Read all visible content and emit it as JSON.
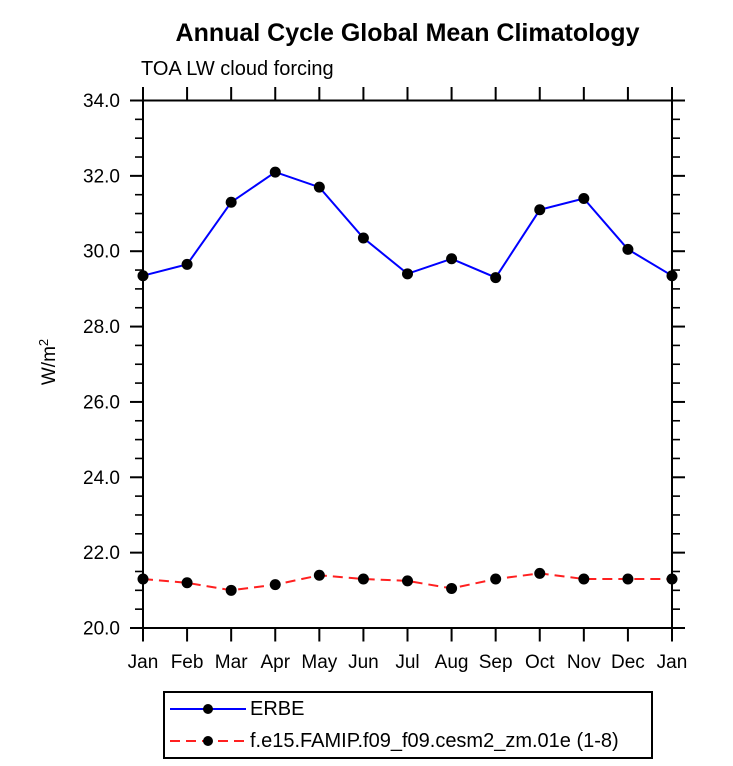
{
  "header": {
    "title": "Annual Cycle Global Mean Climatology",
    "subtitle": "TOA LW cloud forcing"
  },
  "colors": {
    "axis": "#000000",
    "erbe_line": "#0000ff",
    "model_line": "#ff2020",
    "marker": "#000000",
    "background": "#ffffff"
  },
  "chart_data": {
    "type": "line",
    "title": "Annual Cycle Global Mean Climatology",
    "subtitle": "TOA LW cloud forcing",
    "xlabel": "",
    "ylabel": "W/m²",
    "ylim": [
      20.0,
      34.0
    ],
    "y_major_step": 2.0,
    "y_minor_step": 0.5,
    "y_tick_labels": [
      "20.0",
      "22.0",
      "24.0",
      "26.0",
      "28.0",
      "30.0",
      "32.0",
      "34.0"
    ],
    "x_categories": [
      "Jan",
      "Feb",
      "Mar",
      "Apr",
      "May",
      "Jun",
      "Jul",
      "Aug",
      "Sep",
      "Oct",
      "Nov",
      "Dec",
      "Jan"
    ],
    "grid": false,
    "legend_position": "bottom-left-box",
    "series": [
      {
        "name": "ERBE",
        "color": "#0000ff",
        "line_style": "solid",
        "line_width": 2,
        "marker": "filled-circle",
        "marker_color": "#000000",
        "values": [
          29.35,
          29.65,
          31.3,
          32.1,
          31.7,
          30.35,
          29.4,
          29.8,
          29.3,
          31.1,
          31.4,
          30.05,
          29.35
        ]
      },
      {
        "name": "f.e15.FAMIP.f09_f09.cesm2_zm.01e (1-8)",
        "color": "#ff2020",
        "line_style": "dashed",
        "dash": "10 6",
        "line_width": 2,
        "marker": "filled-circle",
        "marker_color": "#000000",
        "values": [
          21.3,
          21.2,
          21.0,
          21.15,
          21.4,
          21.3,
          21.25,
          21.05,
          21.3,
          21.45,
          21.3,
          21.3,
          21.3
        ]
      }
    ]
  }
}
